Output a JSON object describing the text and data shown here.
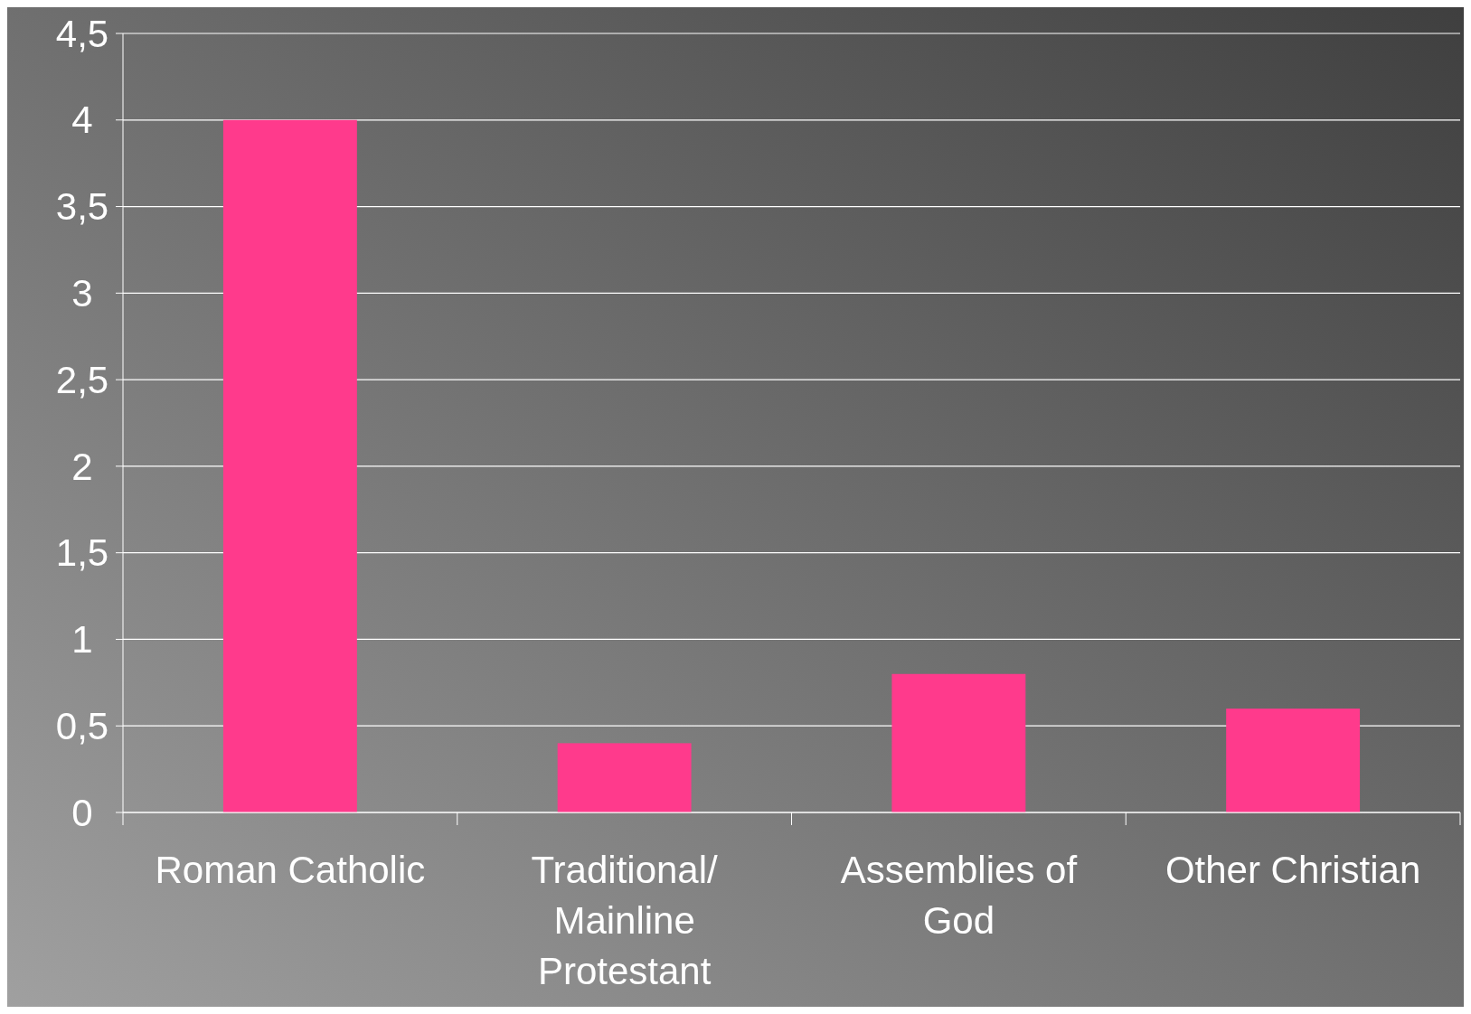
{
  "chart_data": {
    "type": "bar",
    "categories": [
      "Roman Catholic",
      "Traditional/ Mainline Protestant",
      "Assemblies of God",
      "Other Christian"
    ],
    "values": [
      4,
      0.4,
      0.8,
      0.6
    ],
    "color": "#ff3a8c",
    "ylim": [
      0,
      4.5
    ],
    "yticks": [
      0,
      {
        "value": 0.5,
        "label": "0,5"
      },
      1,
      {
        "value": 1.5,
        "label": "1,5"
      },
      2,
      {
        "value": 2.5,
        "label": "2,5"
      },
      3,
      {
        "value": 3.5,
        "label": "3,5"
      },
      4,
      {
        "value": 4.5,
        "label": "4,5"
      }
    ],
    "grid": "y"
  }
}
